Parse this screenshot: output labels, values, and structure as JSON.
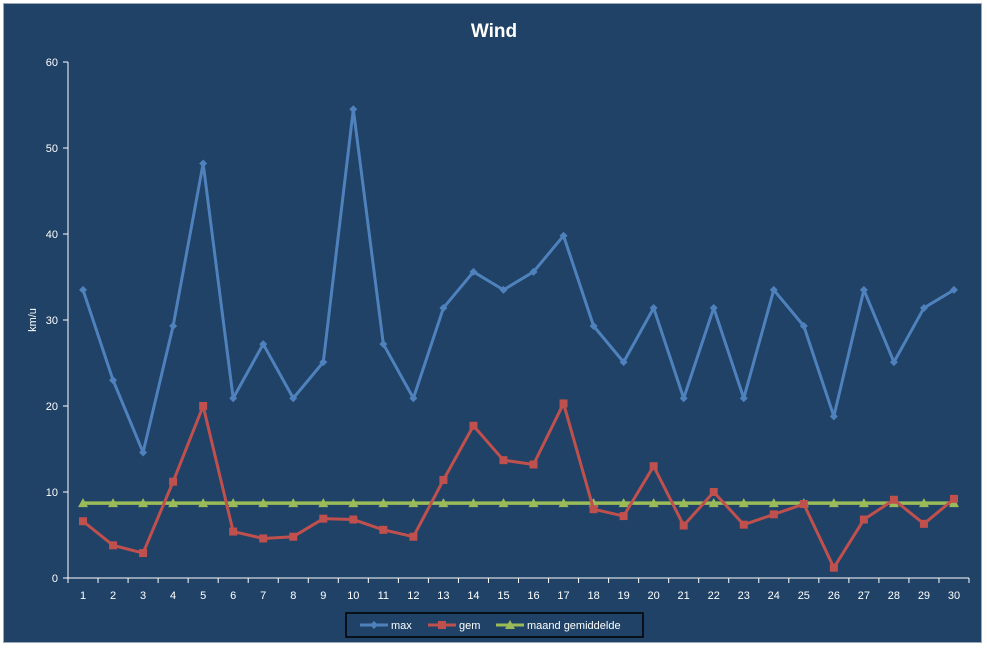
{
  "chart_data": {
    "type": "line",
    "title": "Wind",
    "xlabel": "",
    "ylabel": "km/u",
    "ylim": [
      0,
      60
    ],
    "yticks": [
      "0",
      "10",
      "20",
      "30",
      "40",
      "50",
      "60"
    ],
    "categories": [
      "1",
      "2",
      "3",
      "4",
      "5",
      "6",
      "7",
      "8",
      "9",
      "10",
      "11",
      "12",
      "13",
      "14",
      "15",
      "16",
      "17",
      "18",
      "19",
      "20",
      "21",
      "22",
      "23",
      "24",
      "25",
      "26",
      "27",
      "28",
      "29",
      "30"
    ],
    "grid": false,
    "legend_position": "bottom",
    "series": [
      {
        "name": "max",
        "color": "#4f81bd",
        "marker": "diamond",
        "values": [
          33.5,
          23,
          14.6,
          29.3,
          48.2,
          20.9,
          27.2,
          20.9,
          25.1,
          54.5,
          27.2,
          20.9,
          31.4,
          35.6,
          33.5,
          35.6,
          39.8,
          29.3,
          25.1,
          31.4,
          20.9,
          31.4,
          20.9,
          33.5,
          29.3,
          18.8,
          33.5,
          25.1,
          31.4,
          33.5
        ]
      },
      {
        "name": "gem",
        "color": "#c0504d",
        "marker": "square",
        "values": [
          6.6,
          3.8,
          2.9,
          11.2,
          20,
          5.4,
          4.6,
          4.8,
          6.9,
          6.8,
          5.6,
          4.8,
          11.4,
          17.7,
          13.7,
          13.2,
          20.3,
          8,
          7.2,
          13,
          6.1,
          10,
          6.2,
          7.4,
          8.6,
          1.2,
          6.8,
          9.1,
          6.3,
          9.2
        ]
      },
      {
        "name": "maand gemiddelde",
        "color": "#9bbb59",
        "marker": "triangle",
        "values": [
          8.7,
          8.7,
          8.7,
          8.7,
          8.7,
          8.7,
          8.7,
          8.7,
          8.7,
          8.7,
          8.7,
          8.7,
          8.7,
          8.7,
          8.7,
          8.7,
          8.7,
          8.7,
          8.7,
          8.7,
          8.7,
          8.7,
          8.7,
          8.7,
          8.7,
          8.7,
          8.7,
          8.7,
          8.7,
          8.7
        ]
      }
    ]
  },
  "colors": {
    "background": "#1f4266",
    "axis": "#ffffff",
    "text": "#ffffff",
    "legend_border": "#000000"
  }
}
